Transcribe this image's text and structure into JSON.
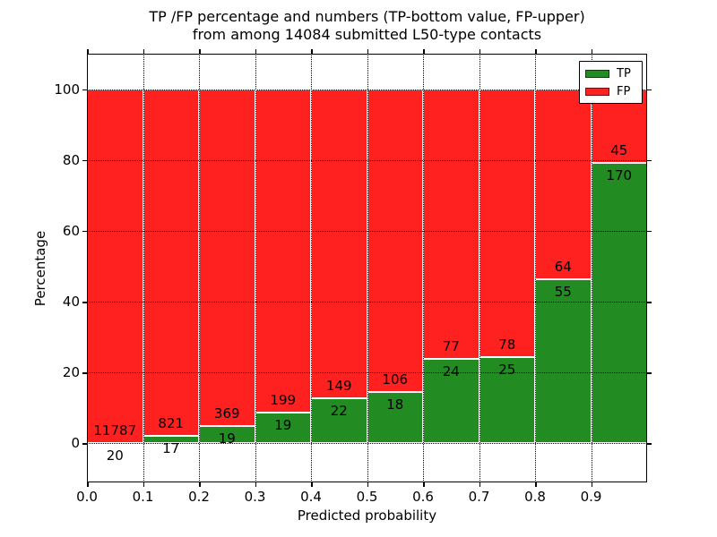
{
  "title": {
    "line1": "TP /FP percentage and numbers (TP-bottom value, FP-upper)",
    "line2": "from among 14084 submitted L50-type contacts"
  },
  "chart_data": {
    "type": "bar",
    "stacked": true,
    "title": "TP /FP percentage and numbers (TP-bottom value, FP-upper) from among 14084 submitted L50-type contacts",
    "xlabel": "Predicted probability",
    "ylabel": "Percentage",
    "xlim": [
      0.0,
      1.0
    ],
    "ylim": [
      -11,
      110
    ],
    "bar_width": 0.1,
    "xticks": [
      "0.0",
      "0.1",
      "0.2",
      "0.3",
      "0.4",
      "0.5",
      "0.6",
      "0.7",
      "0.8",
      "0.9"
    ],
    "yticks": [
      0,
      20,
      40,
      60,
      80,
      100
    ],
    "grid": {
      "style": "dotted",
      "color": "#000000",
      "above_bars": true,
      "axes": "both"
    },
    "colors": {
      "tp": "#228b22",
      "fp": "#ff2020",
      "bar_edge": "#ffffff"
    },
    "legend": {
      "position": "upper-right",
      "entries": [
        {
          "label": "TP",
          "color": "#228b22"
        },
        {
          "label": "FP",
          "color": "#ff2020"
        }
      ]
    },
    "bins": [
      {
        "x_start": 0.0,
        "x_end": 0.1,
        "tp_count": 20,
        "fp_count": 11787
      },
      {
        "x_start": 0.1,
        "x_end": 0.2,
        "tp_count": 17,
        "fp_count": 821
      },
      {
        "x_start": 0.2,
        "x_end": 0.3,
        "tp_count": 19,
        "fp_count": 369
      },
      {
        "x_start": 0.3,
        "x_end": 0.4,
        "tp_count": 19,
        "fp_count": 199
      },
      {
        "x_start": 0.4,
        "x_end": 0.5,
        "tp_count": 22,
        "fp_count": 149
      },
      {
        "x_start": 0.5,
        "x_end": 0.6,
        "tp_count": 18,
        "fp_count": 106
      },
      {
        "x_start": 0.6,
        "x_end": 0.7,
        "tp_count": 24,
        "fp_count": 77
      },
      {
        "x_start": 0.7,
        "x_end": 0.8,
        "tp_count": 25,
        "fp_count": 78
      },
      {
        "x_start": 0.8,
        "x_end": 0.9,
        "tp_count": 55,
        "fp_count": 64
      },
      {
        "x_start": 0.9,
        "x_end": 1.0,
        "tp_count": 170,
        "fp_count": 45
      }
    ]
  }
}
